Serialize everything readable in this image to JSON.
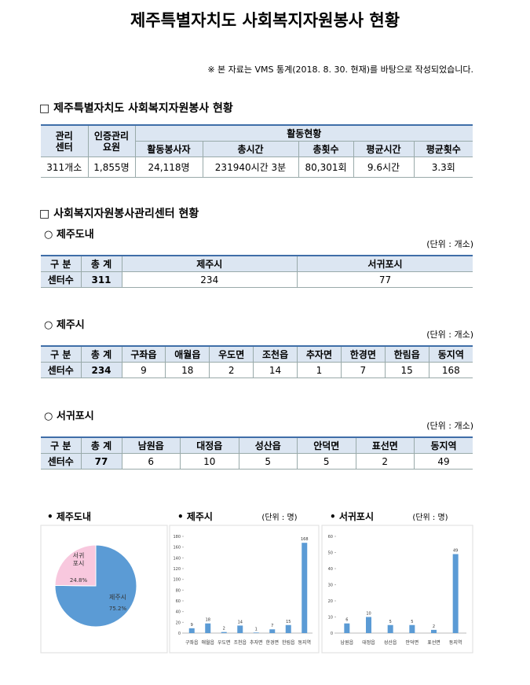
{
  "document": {
    "title": "제주특별자치도 사회복지자원봉사 현황",
    "note": "※ 본 자료는 VMS 통계(2018. 8. 30. 현재)를 바탕으로 작성되었습니다.",
    "section1": {
      "heading": "□ 제주특별자치도 사회복지자원봉사 현황",
      "table": {
        "head1": [
          "관리\n센터",
          "인증관리\n요원",
          "활동현황"
        ],
        "head2": [
          "활동봉사자",
          "총시간",
          "총횟수",
          "평균시간",
          "평균횟수"
        ],
        "row": [
          "311개소",
          "1,855명",
          "24,118명",
          "231940시간 3분",
          "80,301회",
          "9.6시간",
          "3.3회"
        ]
      }
    },
    "section2": {
      "heading": "□ 사회복지자원봉사관리센터 현황",
      "subsections": [
        {
          "title": "○ 제주도내",
          "unit": "(단위 : 개소)",
          "header": [
            "구 분",
            "총 계",
            "제주시",
            "서귀포시"
          ],
          "row": [
            "센터수",
            "311",
            "234",
            "77"
          ]
        },
        {
          "title": "○ 제주시",
          "unit": "(단위 : 개소)",
          "header": [
            "구 분",
            "총 계",
            "구좌읍",
            "애월읍",
            "우도면",
            "조천읍",
            "추자면",
            "한경면",
            "한림읍",
            "동지역"
          ],
          "row": [
            "센터수",
            "234",
            "9",
            "18",
            "2",
            "14",
            "1",
            "7",
            "15",
            "168"
          ]
        },
        {
          "title": "○ 서귀포시",
          "unit": "(단위 : 개소)",
          "header": [
            "구 분",
            "총 계",
            "남원읍",
            "대정읍",
            "성산읍",
            "안덕면",
            "표선면",
            "동지역"
          ],
          "row": [
            "센터수",
            "77",
            "6",
            "10",
            "5",
            "5",
            "2",
            "49"
          ]
        }
      ]
    }
  },
  "chart_data": [
    {
      "type": "pie",
      "title": "• 제주도내",
      "categories": [
        "제주시",
        "서귀\n포시"
      ],
      "values": [
        75.2,
        24.8
      ],
      "value_labels": [
        "75.2%",
        "24.8%"
      ],
      "colors": [
        "#5b9bd5",
        "#f8c8de"
      ]
    },
    {
      "type": "bar",
      "title": "• 제주시",
      "unit": "(단위 : 명)",
      "categories": [
        "구좌읍",
        "애월읍",
        "우도면",
        "조천읍",
        "추자면",
        "한경면",
        "한림읍",
        "동지역"
      ],
      "values": [
        9,
        18,
        2,
        14,
        1,
        7,
        15,
        168
      ],
      "ylim": [
        0,
        180
      ],
      "yticks": [
        0,
        20,
        40,
        60,
        80,
        100,
        120,
        140,
        160,
        180
      ],
      "color": "#5b9bd5"
    },
    {
      "type": "bar",
      "title": "• 서귀포시",
      "unit": "(단위 : 명)",
      "categories": [
        "남원읍",
        "대정읍",
        "성산읍",
        "안덕면",
        "표선면",
        "동지역"
      ],
      "values": [
        6,
        10,
        5,
        5,
        2,
        49
      ],
      "ylim": [
        0,
        60
      ],
      "yticks": [
        0,
        10,
        20,
        30,
        40,
        50,
        60
      ],
      "color": "#5b9bd5"
    }
  ]
}
